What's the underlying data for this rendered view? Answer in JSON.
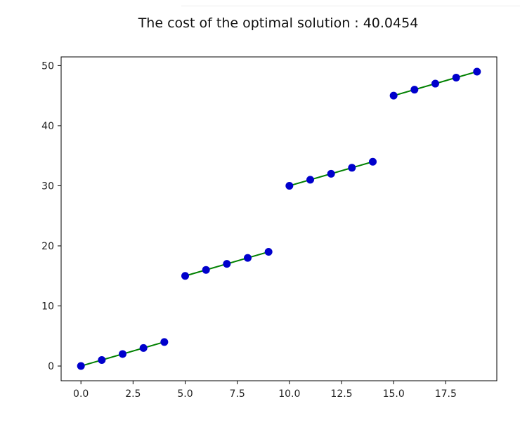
{
  "chart_data": {
    "type": "scatter",
    "title": "The cost of the optimal solution : 40.0454",
    "xlabel": "",
    "ylabel": "",
    "xlim": [
      -0.95,
      19.95
    ],
    "ylim": [
      -2.45,
      51.45
    ],
    "xticks": [
      0.0,
      2.5,
      5.0,
      7.5,
      10.0,
      12.5,
      15.0,
      17.5
    ],
    "xtick_labels": [
      "0.0",
      "2.5",
      "5.0",
      "7.5",
      "10.0",
      "12.5",
      "15.0",
      "17.5"
    ],
    "yticks": [
      0,
      10,
      20,
      30,
      40,
      50
    ],
    "ytick_labels": [
      "0",
      "10",
      "20",
      "30",
      "40",
      "50"
    ],
    "grid": false,
    "points": {
      "color": "#0000cc",
      "x": [
        0,
        1,
        2,
        3,
        4,
        5,
        6,
        7,
        8,
        9,
        10,
        11,
        12,
        13,
        14,
        15,
        16,
        17,
        18,
        19
      ],
      "y": [
        0,
        1,
        2,
        3,
        4,
        15,
        16,
        17,
        18,
        19,
        30,
        31,
        32,
        33,
        34,
        45,
        46,
        47,
        48,
        49
      ]
    },
    "segments": {
      "color": "#008000",
      "lines": [
        {
          "x": [
            0,
            4
          ],
          "y": [
            0,
            4
          ]
        },
        {
          "x": [
            5,
            9
          ],
          "y": [
            15,
            19
          ]
        },
        {
          "x": [
            10,
            14
          ],
          "y": [
            30,
            34
          ]
        },
        {
          "x": [
            15,
            19
          ],
          "y": [
            45,
            49
          ]
        }
      ]
    }
  }
}
